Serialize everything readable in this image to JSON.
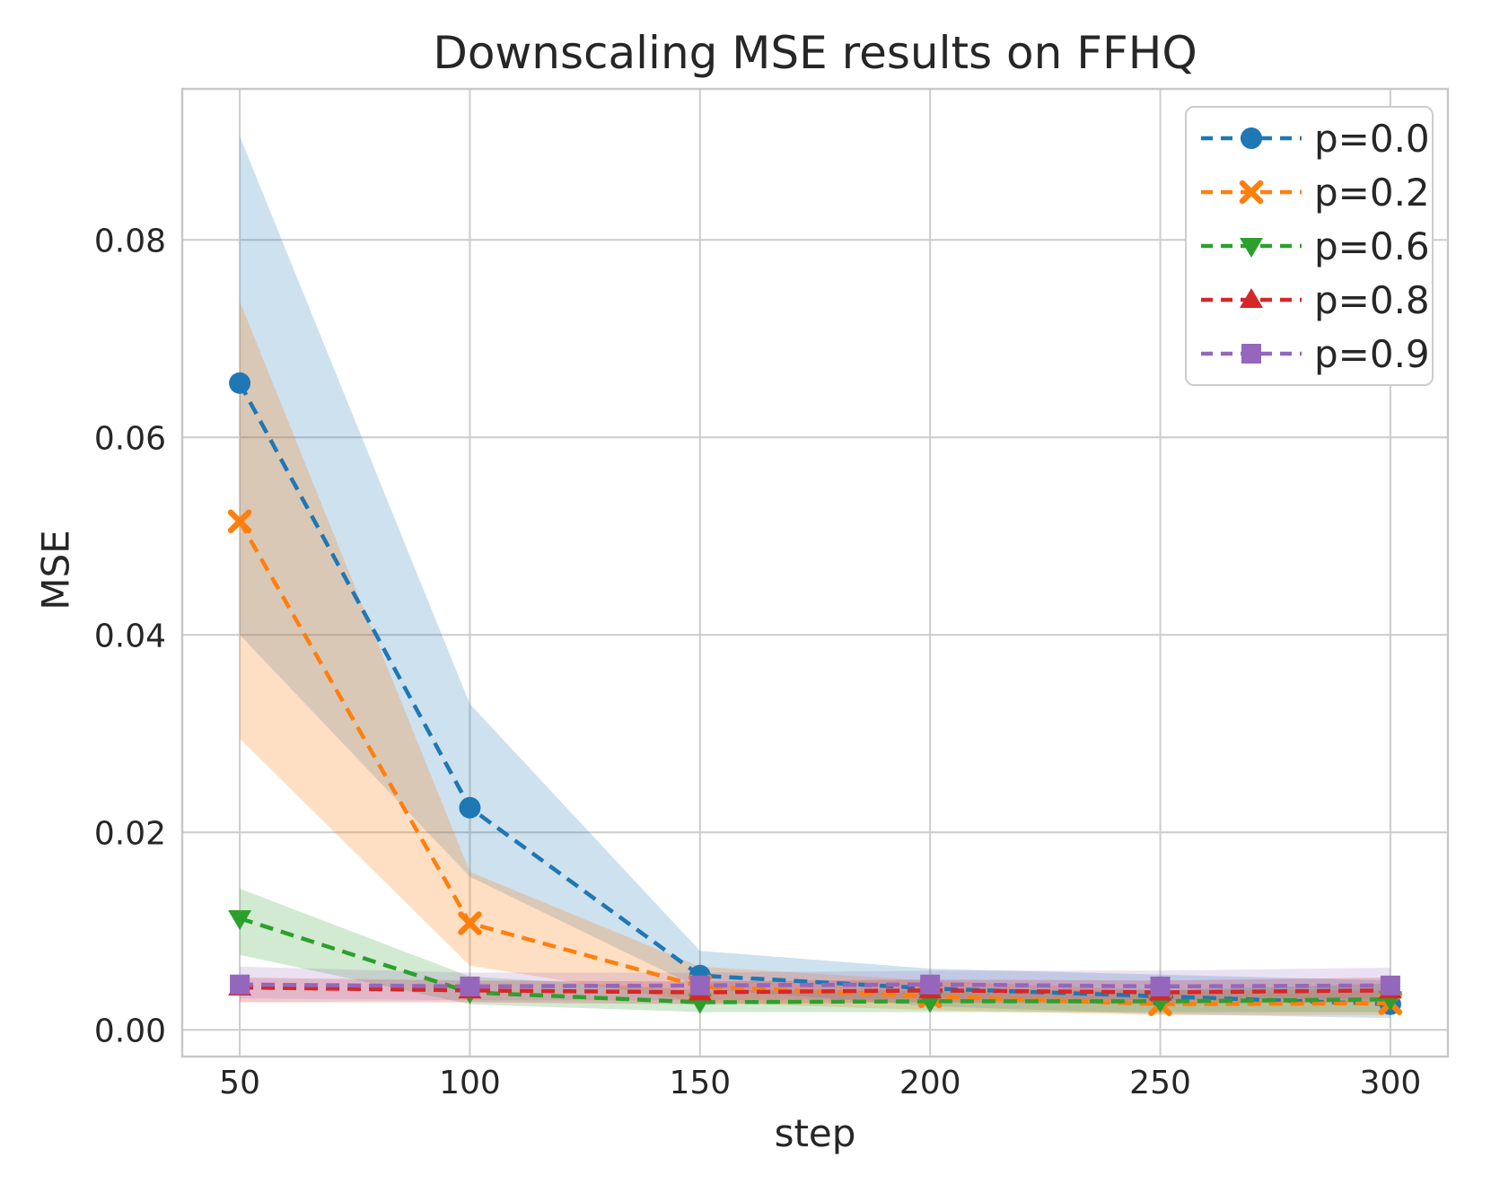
{
  "figure": {
    "background": "#ffffff",
    "grid_color": "#cccccc",
    "spine_color": "#c8c8c8",
    "text_color": "#262626"
  },
  "chart_data": {
    "type": "line",
    "title": "Downscaling MSE results on FFHQ",
    "xlabel": "step",
    "ylabel": "MSE",
    "grid": true,
    "legend_position": "upper right",
    "line_style": "dashed",
    "x": [
      50,
      100,
      150,
      200,
      250,
      300
    ],
    "x_tick_labels": [
      "50",
      "100",
      "150",
      "200",
      "250",
      "300"
    ],
    "y_ticks": [
      0.0,
      0.02,
      0.04,
      0.06,
      0.08
    ],
    "y_tick_labels": [
      "0.00",
      "0.02",
      "0.04",
      "0.06",
      "0.08"
    ],
    "xlim": [
      37.5,
      312.5
    ],
    "ylim": [
      -0.0027,
      0.0953
    ],
    "series": [
      {
        "name": "p=0.0",
        "color": "#1f77b4",
        "marker": "circle",
        "band_opacity": 0.22,
        "values": [
          0.0655,
          0.0225,
          0.0055,
          0.0042,
          0.0034,
          0.0026
        ],
        "band_upper": [
          0.0905,
          0.033,
          0.008,
          0.0062,
          0.0056,
          0.005
        ],
        "band_lower": [
          0.04,
          0.0155,
          0.0042,
          0.0024,
          0.0016,
          0.0012
        ]
      },
      {
        "name": "p=0.2",
        "color": "#ff7f0e",
        "marker": "x",
        "band_opacity": 0.25,
        "values": [
          0.0515,
          0.0108,
          0.0044,
          0.0034,
          0.0026,
          0.0027
        ],
        "band_upper": [
          0.0738,
          0.016,
          0.0064,
          0.005,
          0.004,
          0.004
        ],
        "band_lower": [
          0.0295,
          0.0065,
          0.0028,
          0.002,
          0.0015,
          0.0015
        ]
      },
      {
        "name": "p=0.6",
        "color": "#2ca02c",
        "marker": "triangle-down",
        "band_opacity": 0.22,
        "values": [
          0.0113,
          0.0038,
          0.0028,
          0.0029,
          0.0029,
          0.0031
        ],
        "band_upper": [
          0.0143,
          0.0054,
          0.004,
          0.004,
          0.004,
          0.0047
        ],
        "band_lower": [
          0.0076,
          0.0026,
          0.0018,
          0.0018,
          0.0018,
          0.0018
        ]
      },
      {
        "name": "p=0.8",
        "color": "#d62728",
        "marker": "triangle-up",
        "band_opacity": 0.24,
        "values": [
          0.0043,
          0.004,
          0.0038,
          0.004,
          0.0038,
          0.004
        ],
        "band_upper": [
          0.0053,
          0.005,
          0.0049,
          0.0051,
          0.005,
          0.0053
        ],
        "band_lower": [
          0.0028,
          0.0028,
          0.0026,
          0.0028,
          0.0026,
          0.0028
        ]
      },
      {
        "name": "p=0.9",
        "color": "#9467bd",
        "marker": "square",
        "band_opacity": 0.2,
        "values": [
          0.0046,
          0.0044,
          0.0045,
          0.0046,
          0.0044,
          0.0045
        ],
        "band_upper": [
          0.0064,
          0.0058,
          0.0058,
          0.006,
          0.006,
          0.0063
        ],
        "band_lower": [
          0.0032,
          0.003,
          0.003,
          0.0032,
          0.003,
          0.0032
        ]
      }
    ]
  }
}
